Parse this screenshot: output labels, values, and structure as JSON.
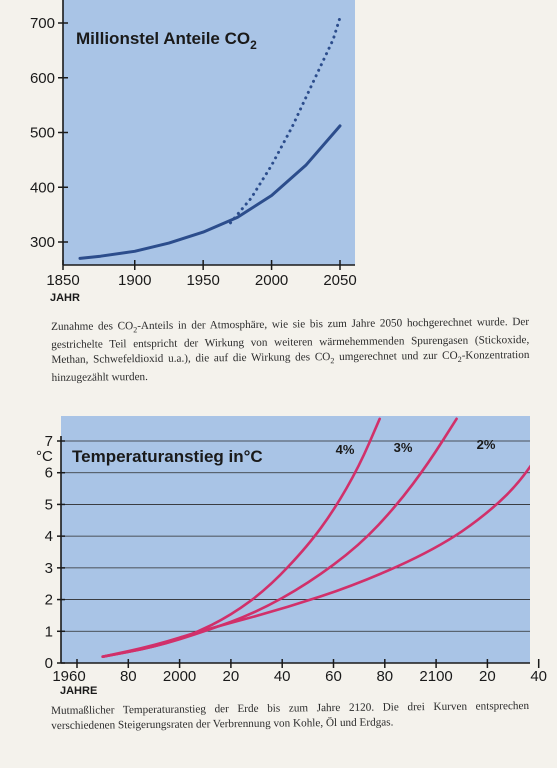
{
  "chart_data": [
    {
      "type": "line",
      "title": "Millionstel Anteile CO",
      "title_subscript": "2",
      "xlabel": "JAHR",
      "ylabel": "",
      "xlim": [
        1850,
        2050
      ],
      "ylim": [
        250,
        710
      ],
      "x_ticks": [
        "1850",
        "1900",
        "1950",
        "2000",
        "2050"
      ],
      "y_ticks": [
        "300",
        "400",
        "500",
        "600",
        "700"
      ],
      "grid": false,
      "background": "#a9c4e6",
      "series": [
        {
          "style": "solid",
          "color": "#2c4d8c",
          "x": [
            1860,
            1875,
            1900,
            1925,
            1950,
            1975,
            2000,
            2025,
            2050
          ],
          "y": [
            270,
            274,
            283,
            298,
            318,
            345,
            385,
            440,
            512
          ]
        },
        {
          "style": "dotted",
          "color": "#2c4d8c",
          "x": [
            1970,
            1985,
            2000,
            2015,
            2030,
            2045,
            2050
          ],
          "y": [
            335,
            380,
            440,
            510,
            590,
            670,
            710
          ]
        }
      ]
    },
    {
      "type": "line",
      "title": "Temperaturanstieg in°C",
      "xlabel": "JAHRE",
      "ylabel": "°C",
      "xlim": [
        1960,
        2140
      ],
      "ylim": [
        0,
        7
      ],
      "x_ticks": [
        "1960",
        "80",
        "2000",
        "20",
        "40",
        "60",
        "80",
        "2100",
        "20",
        "40"
      ],
      "y_ticks": [
        "0",
        "1",
        "2",
        "3",
        "4",
        "5",
        "6",
        "7"
      ],
      "grid": true,
      "background": "#a9c4e6",
      "series": [
        {
          "name": "4%",
          "color": "#d1306a",
          "x": [
            1970,
            1990,
            2005,
            2020,
            2035,
            2050,
            2060,
            2070,
            2078
          ],
          "y": [
            0.2,
            0.5,
            0.9,
            1.5,
            2.4,
            3.7,
            4.8,
            6.2,
            7.7
          ]
        },
        {
          "name": "3%",
          "color": "#d1306a",
          "x": [
            1970,
            1990,
            2010,
            2030,
            2050,
            2070,
            2085,
            2097,
            2108
          ],
          "y": [
            0.2,
            0.5,
            1.0,
            1.6,
            2.5,
            3.7,
            5.0,
            6.3,
            7.7
          ]
        },
        {
          "name": "2%",
          "color": "#d1306a",
          "x": [
            1970,
            1990,
            2010,
            2040,
            2070,
            2100,
            2120,
            2135,
            2148
          ],
          "y": [
            0.2,
            0.55,
            1.05,
            1.7,
            2.5,
            3.6,
            4.7,
            5.9,
            7.7
          ]
        }
      ]
    }
  ],
  "captions": {
    "top": "Zunahme des CO₂-Anteils in der Atmosphäre, wie sie bis zum Jahre 2050 hochgerechnet wurde. Der gestrichelte Teil entspricht der Wirkung von weiteren wärmehemmenden Spurengasen (Stickoxide, Methan, Schwefeldioxid u.a.), die auf die Wirkung des CO₂ umgerechnet und zur CO₂-Konzentration hinzugezählt wurden.",
    "bottom": "Mutmaßlicher Temperaturanstieg der Erde bis zum Jahre 2120. Die drei Kurven entsprechen verschiedenen Steigerungsraten der Verbrennung von Kohle, Öl und Erdgas."
  }
}
